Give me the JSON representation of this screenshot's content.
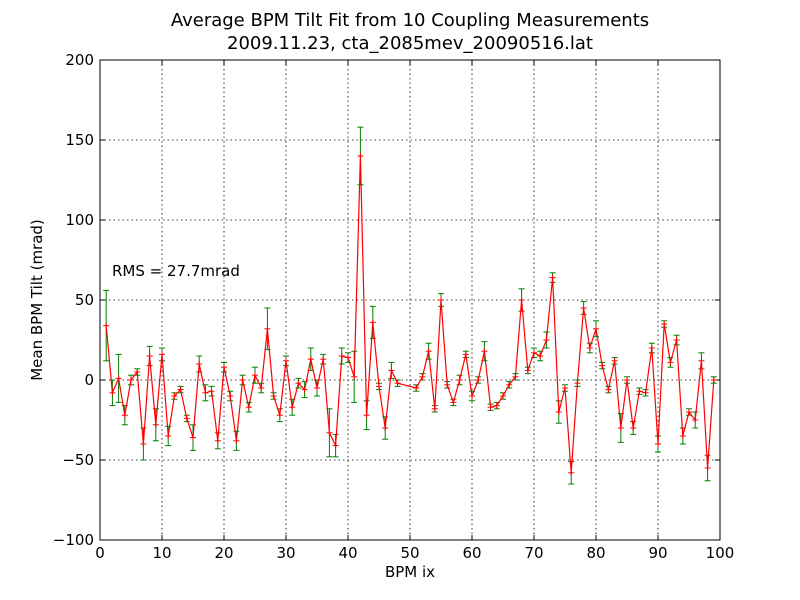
{
  "chart_data": {
    "type": "line",
    "title": "Average BPM Tilt Fit from 10 Coupling Measurements",
    "subtitle": "2009.11.23, cta_2085mev_20090516.lat",
    "xlabel": "BPM ix",
    "ylabel": "Mean BPM Tilt (mrad)",
    "xlim": [
      0,
      100
    ],
    "ylim": [
      -100,
      200
    ],
    "xticks": [
      0,
      10,
      20,
      30,
      40,
      50,
      60,
      70,
      80,
      90,
      100
    ],
    "yticks": [
      -100,
      -50,
      0,
      50,
      100,
      150,
      200
    ],
    "xtick_labels": [
      "0",
      "10",
      "20",
      "30",
      "40",
      "50",
      "60",
      "70",
      "80",
      "90",
      "100"
    ],
    "ytick_labels": [
      "−100",
      "−50",
      "0",
      "50",
      "100",
      "150",
      "200"
    ],
    "grid": true,
    "annotation": "RMS = 27.7mrad",
    "line_color": "#ff0000",
    "errorbar_color": "#008000",
    "x": [
      1,
      2,
      3,
      4,
      5,
      6,
      7,
      8,
      9,
      10,
      11,
      12,
      13,
      14,
      15,
      16,
      17,
      18,
      19,
      20,
      21,
      22,
      23,
      24,
      25,
      26,
      27,
      28,
      29,
      30,
      31,
      32,
      33,
      34,
      35,
      36,
      37,
      38,
      39,
      40,
      41,
      42,
      43,
      44,
      45,
      46,
      47,
      48,
      51,
      52,
      53,
      54,
      55,
      56,
      57,
      58,
      59,
      60,
      61,
      62,
      63,
      64,
      65,
      66,
      67,
      68,
      69,
      70,
      71,
      72,
      73,
      74,
      75,
      76,
      77,
      78,
      79,
      80,
      81,
      82,
      83,
      84,
      85,
      86,
      87,
      88,
      89,
      90,
      91,
      92,
      93,
      94,
      95,
      96,
      97,
      98,
      99
    ],
    "y": [
      34,
      -8,
      1,
      -22,
      0,
      5,
      -40,
      15,
      -28,
      16,
      -35,
      -10,
      -6,
      -24,
      -36,
      10,
      -8,
      -7,
      -38,
      8,
      -10,
      -38,
      0,
      -17,
      3,
      -5,
      32,
      -10,
      -22,
      12,
      -17,
      -2,
      -6,
      13,
      -5,
      13,
      -33,
      -41,
      15,
      14,
      2,
      140,
      -22,
      36,
      -4,
      -30,
      6,
      -2,
      -5,
      2,
      18,
      -18,
      50,
      -3,
      -14,
      0,
      16,
      -10,
      0,
      18,
      -17,
      -16,
      -10,
      -3,
      2,
      50,
      6,
      17,
      15,
      25,
      64,
      -20,
      -5,
      -58,
      -2,
      45,
      20,
      32,
      9,
      -6,
      12,
      -30,
      0,
      -30,
      -7,
      -8,
      20,
      -40,
      35,
      11,
      25,
      -35,
      -20,
      -25,
      12,
      -55,
      0
    ],
    "err": [
      22,
      8,
      15,
      6,
      3,
      2,
      10,
      6,
      10,
      4,
      6,
      2,
      2,
      2,
      8,
      5,
      5,
      3,
      5,
      3,
      3,
      6,
      3,
      3,
      5,
      3,
      13,
      2,
      4,
      3,
      5,
      3,
      5,
      7,
      5,
      3,
      15,
      7,
      5,
      3,
      16,
      18,
      9,
      10,
      2,
      7,
      5,
      2,
      2,
      2,
      5,
      2,
      4,
      2,
      2,
      3,
      2,
      3,
      2,
      6,
      2,
      2,
      2,
      2,
      2,
      7,
      2,
      3,
      3,
      5,
      3,
      7,
      2,
      7,
      2,
      4,
      3,
      5,
      2,
      2,
      2,
      9,
      2,
      4,
      2,
      2,
      3,
      5,
      2,
      3,
      3,
      5,
      2,
      5,
      5,
      8,
      2
    ]
  }
}
